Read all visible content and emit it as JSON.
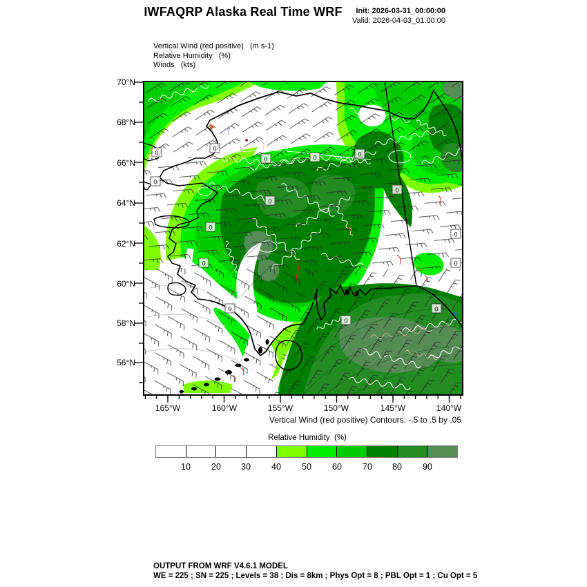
{
  "header": {
    "title": "IWFAQRP Alaska Real Time WRF",
    "init_label": "Init: 2026-03-31_00:00:00",
    "valid_label": "Valid: 2026-04-03_01:00:00"
  },
  "legend": {
    "line1": "Vertical Wind (red positive)   (m s-1)",
    "line2": "Relative Humidity   (%)",
    "line3": "Winds   (kts)"
  },
  "map": {
    "lat_labels": [
      "70°N",
      "68°N",
      "66°N",
      "64°N",
      "62°N",
      "60°N",
      "58°N",
      "56°N"
    ],
    "lon_labels": [
      "165°W",
      "160°W",
      "155°W",
      "150°W",
      "145°W",
      "140°W"
    ],
    "contour_label": "0",
    "caption": "Vertical Wind (red positive) Contours: -.5 to .5 by .05"
  },
  "colorbar": {
    "title": "Relative Humidity  (%)",
    "tick_labels": [
      "10",
      "20",
      "30",
      "40",
      "50",
      "60",
      "70",
      "80",
      "90"
    ],
    "cell_colors": [
      "#ffffff",
      "#ffffff",
      "#ffffff",
      "#ffffff",
      "#7dff00",
      "#00ee00",
      "#00cc00",
      "#008000",
      "#228b22",
      "#558b55"
    ],
    "positive_contour_color": "#cc2222",
    "negative_contour_color": "#8899dd",
    "contour_color": "#ffffff"
  },
  "footer": {
    "line1": "OUTPUT FROM WRF V4.6.1 MODEL",
    "line2": "WE = 225 ; SN = 225 ; Levels = 38 ; Dis = 8km ; Phys Opt = 8 ; PBL Opt = 1 ; Cu Opt = 5"
  }
}
